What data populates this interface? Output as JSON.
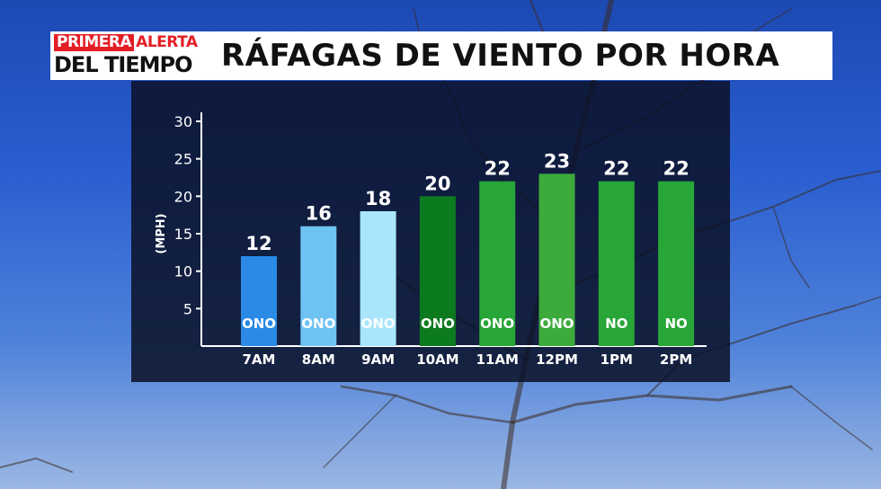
{
  "header": {
    "logo_line1a": "PRIMERA",
    "logo_line1b": "ALERTA",
    "logo_line2": "DEL TIEMPO",
    "title": "RÁFAGAS DE VIENTO POR HORA"
  },
  "chart_data": {
    "type": "bar",
    "title": "RÁFAGAS DE VIENTO POR HORA",
    "ylabel": "(MPH)",
    "xlabel": "",
    "ylim": [
      0,
      30
    ],
    "yticks": [
      5,
      10,
      15,
      20,
      25,
      30
    ],
    "grid": false,
    "categories": [
      "7AM",
      "8AM",
      "9AM",
      "10AM",
      "11AM",
      "12PM",
      "1PM",
      "2PM"
    ],
    "values": [
      12,
      16,
      18,
      20,
      22,
      23,
      22,
      22
    ],
    "directions": [
      "ONO",
      "ONO",
      "ONO",
      "ONO",
      "ONO",
      "ONO",
      "NO",
      "NO"
    ],
    "bar_colors": [
      "#2a8ae6",
      "#6fc3f2",
      "#a9e6fb",
      "#0c7a1e",
      "#28a637",
      "#3daa3c",
      "#28a637",
      "#28a637"
    ]
  }
}
